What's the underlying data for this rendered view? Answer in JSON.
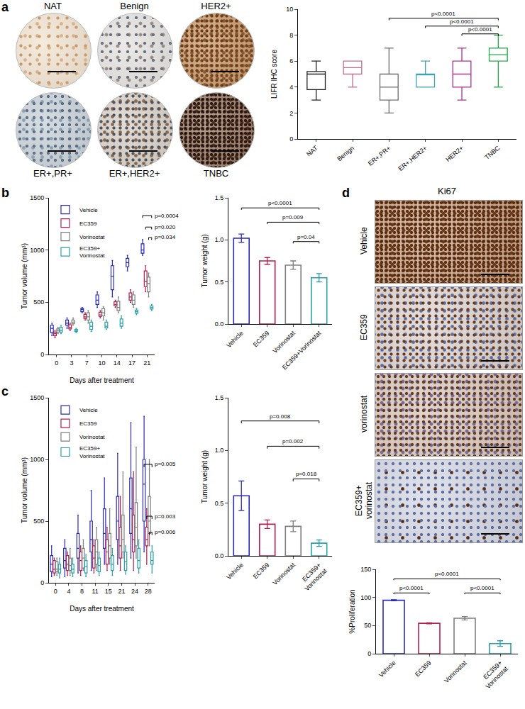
{
  "figure": {
    "panel_labels": [
      "a",
      "b",
      "c",
      "d"
    ],
    "ihc_images": [
      "NAT",
      "Benign",
      "HER2+",
      "ER+,PR+",
      "ER+,HER2+",
      "TNBC"
    ],
    "ki67_title": "Ki67",
    "ki67_images": [
      "Vehicle",
      "EC359",
      "vorinostat",
      "EC359+\nvorinostat"
    ]
  },
  "chart_data": [
    {
      "type": "box",
      "ylabel": "LIFR IHC score",
      "categories": [
        "NAT",
        "Benign",
        "ER+,PR+",
        "ER+,HER2+",
        "HER2+",
        "TNBC"
      ],
      "colors": [
        "#222222",
        "#c0708a",
        "#6e6e6e",
        "#3fa3b3",
        "#a8358e",
        "#22a84a"
      ],
      "min": [
        3,
        4,
        2,
        4,
        3,
        4
      ],
      "q1": [
        3.8,
        5,
        3,
        4,
        4,
        6
      ],
      "median": [
        5,
        5.5,
        4,
        5,
        5,
        6.5
      ],
      "q3": [
        5.2,
        6,
        5,
        5,
        6,
        7
      ],
      "max": [
        6,
        6,
        7,
        6,
        7,
        8
      ],
      "ylim": [
        0,
        10
      ],
      "yticks": [
        0,
        2,
        4,
        6,
        8,
        10
      ],
      "grid": false,
      "comparisons": [
        {
          "from": "ER+,PR+",
          "to": "TNBC",
          "label": "p<0.0001",
          "y": 9.3
        },
        {
          "from": "ER+,HER2+",
          "to": "TNBC",
          "label": "p<0.0001",
          "y": 8.7
        },
        {
          "from": "HER2+",
          "to": "TNBC",
          "label": "p<0.0001",
          "y": 8.1
        }
      ]
    },
    {
      "type": "box",
      "xlabel": "Days after treatment",
      "ylabel": "Tumor volume (mm³)",
      "categories": [
        "0",
        "3",
        "7",
        "10",
        "14",
        "17",
        "21"
      ],
      "series": [
        {
          "name": "Vehicle",
          "color": "#2a2ab8",
          "min": [
            180,
            250,
            400,
            450,
            550,
            800,
            950
          ],
          "q1": [
            210,
            280,
            410,
            480,
            620,
            840,
            970
          ],
          "median": [
            250,
            300,
            430,
            520,
            750,
            880,
            1000
          ],
          "q3": [
            280,
            330,
            440,
            570,
            850,
            920,
            1060
          ],
          "max": [
            300,
            350,
            450,
            600,
            900,
            950,
            1100
          ]
        },
        {
          "name": "EC359",
          "color": "#b21f4f",
          "min": [
            160,
            230,
            330,
            350,
            450,
            500,
            600
          ],
          "q1": [
            180,
            245,
            345,
            365,
            465,
            520,
            650
          ],
          "median": [
            200,
            260,
            360,
            380,
            480,
            550,
            700
          ],
          "q3": [
            215,
            285,
            385,
            405,
            505,
            590,
            800
          ],
          "max": [
            230,
            300,
            400,
            420,
            520,
            620,
            850
          ]
        },
        {
          "name": "Vorinostat",
          "color": "#7f7f7f",
          "min": [
            200,
            280,
            300,
            330,
            400,
            450,
            550
          ],
          "q1": [
            215,
            295,
            330,
            370,
            420,
            480,
            600
          ],
          "median": [
            230,
            310,
            360,
            400,
            450,
            520,
            680
          ],
          "q3": [
            245,
            330,
            400,
            440,
            510,
            570,
            740
          ],
          "max": [
            260,
            350,
            420,
            460,
            550,
            600,
            780
          ]
        },
        {
          "name": "EC359+\nVorinostat",
          "color": "#2aa0a8",
          "min": [
            200,
            210,
            220,
            240,
            250,
            380,
            420
          ],
          "q1": [
            215,
            220,
            240,
            255,
            270,
            395,
            435
          ],
          "median": [
            230,
            230,
            270,
            270,
            300,
            410,
            450
          ],
          "q3": [
            260,
            240,
            310,
            310,
            340,
            425,
            465
          ],
          "max": [
            280,
            250,
            330,
            330,
            370,
            440,
            480
          ]
        }
      ],
      "legend": "top left",
      "ylim": [
        0,
        1500
      ],
      "yticks": [
        0,
        500,
        1000,
        1500
      ],
      "grid": false,
      "comparisons": [
        {
          "category": "21",
          "from": "Vehicle",
          "to": "EC359+\nVorinostat",
          "label": "p=0.0004",
          "y": 1330
        },
        {
          "category": "21",
          "from": "EC359",
          "to": "EC359+\nVorinostat",
          "label": "p=0.020",
          "y": 1220
        },
        {
          "category": "21",
          "from": "Vorinostat",
          "to": "EC359+\nVorinostat",
          "label": "p=0.034",
          "y": 1120
        }
      ]
    },
    {
      "type": "bar",
      "ylabel": "Tumor weight (g)",
      "categories": [
        "Vehicle",
        "EC359",
        "Vorinostat",
        "EC359+Vorinostat"
      ],
      "values": [
        1.02,
        0.75,
        0.7,
        0.55
      ],
      "errors": [
        0.05,
        0.04,
        0.05,
        0.05
      ],
      "colors": [
        "#2a2ab8",
        "#b21f4f",
        "#7f7f7f",
        "#2aa0a8"
      ],
      "ylim": [
        0,
        1.5
      ],
      "yticks": [
        {
          "value": 0,
          "label": "0.0"
        },
        {
          "value": 0.5,
          "label": "0.5"
        },
        {
          "value": 1,
          "label": "1.0"
        },
        {
          "value": 1.5,
          "label": "1.5"
        }
      ],
      "grid": false,
      "comparisons": [
        {
          "from": "Vehicle",
          "to": "EC359+Vorinostat",
          "label": "p<0.0001",
          "y": 1.38
        },
        {
          "from": "EC359",
          "to": "EC359+Vorinostat",
          "label": "p=0.009",
          "y": 1.21
        },
        {
          "from": "Vorinostat",
          "to": "EC359+Vorinostat",
          "label": "p=0.04",
          "y": 0.98
        }
      ]
    },
    {
      "type": "box",
      "xlabel": "Days after treatment",
      "ylabel": "Tumor volume (mm³)",
      "categories": [
        "0",
        "4",
        "8",
        "11",
        "15",
        "21",
        "24",
        "28"
      ],
      "series": [
        {
          "name": "Vehicle",
          "color": "#2a2ab8",
          "min": [
            50,
            50,
            80,
            100,
            150,
            150,
            200,
            250
          ],
          "q1": [
            90,
            120,
            200,
            250,
            280,
            350,
            400,
            500
          ],
          "median": [
            150,
            180,
            280,
            350,
            400,
            500,
            600,
            800
          ],
          "q3": [
            220,
            280,
            400,
            500,
            600,
            700,
            850,
            1000
          ],
          "max": [
            300,
            350,
            550,
            750,
            850,
            1050,
            1300,
            1350
          ]
        },
        {
          "name": "EC359",
          "color": "#b21f4f",
          "min": [
            60,
            60,
            60,
            80,
            100,
            100,
            100,
            150
          ],
          "q1": [
            80,
            100,
            100,
            120,
            150,
            200,
            250,
            300
          ],
          "median": [
            110,
            150,
            180,
            200,
            250,
            300,
            350,
            350
          ],
          "q3": [
            180,
            220,
            250,
            300,
            350,
            450,
            550,
            450
          ],
          "max": [
            200,
            250,
            300,
            350,
            450,
            700,
            900,
            600
          ]
        },
        {
          "name": "Vorinostat",
          "color": "#7f7f7f",
          "min": [
            60,
            60,
            100,
            100,
            150,
            200,
            200,
            300
          ],
          "q1": [
            90,
            100,
            120,
            150,
            200,
            250,
            300,
            400
          ],
          "median": [
            110,
            140,
            200,
            250,
            300,
            350,
            450,
            500
          ],
          "q3": [
            170,
            200,
            280,
            350,
            400,
            550,
            650,
            700
          ],
          "max": [
            200,
            280,
            350,
            450,
            600,
            900,
            1100,
            1000
          ]
        },
        {
          "name": "EC359+\nVorinostat",
          "color": "#2aa0a8",
          "min": [
            40,
            50,
            50,
            60,
            60,
            70,
            80,
            80
          ],
          "q1": [
            80,
            80,
            80,
            90,
            100,
            100,
            120,
            150
          ],
          "median": [
            110,
            110,
            130,
            140,
            150,
            170,
            180,
            180
          ],
          "q3": [
            150,
            150,
            180,
            200,
            220,
            250,
            280,
            250
          ],
          "max": [
            200,
            200,
            230,
            250,
            280,
            300,
            350,
            300
          ]
        }
      ],
      "legend": "top left",
      "ylim": [
        0,
        1500
      ],
      "yticks": [
        0,
        500,
        1000,
        1500
      ],
      "grid": false,
      "comparisons": [
        {
          "category": "28",
          "from": "Vehicle",
          "to": "EC359+\nVorinostat",
          "label": "p=0.005",
          "y": 960
        },
        {
          "category": "28",
          "from": "EC359",
          "to": "EC359+\nVorinostat",
          "label": "p=0.003",
          "y": 540
        },
        {
          "category": "28",
          "from": "Vorinostat",
          "to": "EC359+\nVorinostat",
          "label": "p=0.006",
          "y": 410
        }
      ]
    },
    {
      "type": "bar",
      "ylabel": "Tumor weight (g)",
      "categories": [
        "Vehicle",
        "EC359",
        "Vorinostat",
        "EC359+\nVorinostat"
      ],
      "values": [
        0.57,
        0.3,
        0.28,
        0.12
      ],
      "errors": [
        0.14,
        0.04,
        0.05,
        0.03
      ],
      "colors": [
        "#2a2ab8",
        "#b21f4f",
        "#7f7f7f",
        "#2aa0a8"
      ],
      "ylim": [
        0,
        1.5
      ],
      "yticks": [
        {
          "value": 0,
          "label": "0.0"
        },
        {
          "value": 0.5,
          "label": "0.5"
        },
        {
          "value": 1,
          "label": "1.0"
        },
        {
          "value": 1.5,
          "label": "1.5"
        }
      ],
      "grid": false,
      "comparisons": [
        {
          "from": "Vehicle",
          "to": "EC359+\nVorinostat",
          "label": "p=0.008",
          "y": 1.28
        },
        {
          "from": "EC359",
          "to": "EC359+\nVorinostat",
          "label": "p=0.002",
          "y": 1.04
        },
        {
          "from": "Vorinostat",
          "to": "EC359+\nVorinostat",
          "label": "p=0.018",
          "y": 0.73
        }
      ]
    },
    {
      "type": "bar",
      "ylabel": "%Proliferation",
      "categories": [
        "Vehicle",
        "EC359",
        "Vorinostat",
        "EC359+\nVorinostat"
      ],
      "values": [
        95,
        54,
        63,
        18
      ],
      "errors": [
        1,
        1,
        3,
        5
      ],
      "colors": [
        "#2a2ab8",
        "#b21f4f",
        "#7f7f7f",
        "#2aa0a8"
      ],
      "ylim": [
        0,
        150
      ],
      "yticks": [
        0,
        50,
        100,
        150
      ],
      "grid": false,
      "comparisons": [
        {
          "from": "Vehicle",
          "to": "EC359+\nVorinostat",
          "label": "p<0.0001",
          "y": 133
        },
        {
          "from": "Vehicle",
          "to": "EC359",
          "label": "p<0.0001",
          "y": 108
        },
        {
          "from": "Vorinostat",
          "to": "EC359+\nVorinostat",
          "label": "p<0.0001",
          "y": 108
        }
      ]
    }
  ]
}
